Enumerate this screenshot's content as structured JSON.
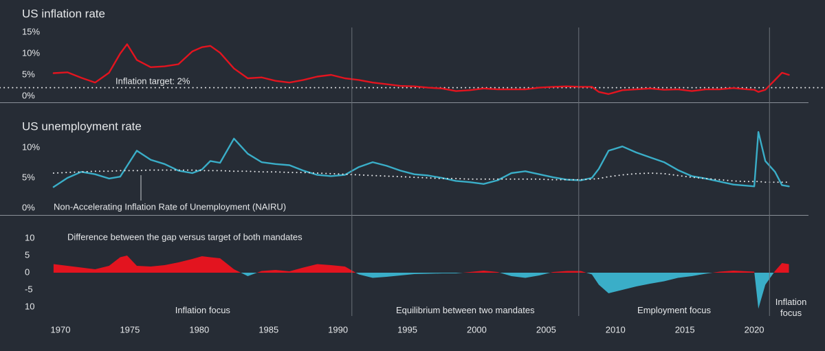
{
  "chart_data": [
    {
      "type": "line",
      "title": "US inflation rate",
      "annotation": "Inflation target: 2%",
      "target": 2,
      "xlim": [
        1965.64,
        2025.1
      ],
      "ylim": [
        -1.5,
        16.5
      ],
      "yticks": [
        {
          "value": 15,
          "label": "15%"
        },
        {
          "value": 10,
          "label": "10%"
        },
        {
          "value": 5,
          "label": "5%"
        },
        {
          "value": 0,
          "label": "0%"
        }
      ],
      "x": [
        1969.5,
        1970.5,
        1971.5,
        1972.5,
        1973.5,
        1974.3,
        1974.8,
        1975.5,
        1976.5,
        1977.5,
        1978.5,
        1979.5,
        1980.2,
        1980.8,
        1981.5,
        1982.5,
        1983.5,
        1984.5,
        1985.5,
        1986.5,
        1987.5,
        1988.5,
        1989.5,
        1990.5,
        1991.5,
        1992.5,
        1993.5,
        1994.5,
        1995.5,
        1996.5,
        1997.5,
        1998.5,
        1999.5,
        2000.5,
        2001.5,
        2002.5,
        2003.5,
        2004.5,
        2005.5,
        2006.5,
        2007.5,
        2008.3,
        2008.8,
        2009.5,
        2010.5,
        2011.5,
        2012.5,
        2013.5,
        2014.5,
        2015.5,
        2016.5,
        2017.5,
        2018.5,
        2019.5,
        2020.0,
        2020.3,
        2020.8,
        2021.5,
        2022.0,
        2022.5
      ],
      "series": [
        {
          "color": "#e3141f",
          "values": [
            5.4,
            5.6,
            4.3,
            3.2,
            5.5,
            10,
            12.2,
            8.5,
            6.8,
            7.0,
            7.5,
            10.5,
            11.5,
            11.8,
            10.2,
            6.5,
            4.2,
            4.4,
            3.6,
            3.2,
            3.8,
            4.6,
            5.0,
            4.2,
            3.8,
            3.2,
            2.8,
            2.4,
            2.3,
            2.0,
            1.8,
            1.2,
            1.4,
            1.8,
            1.6,
            1.6,
            1.6,
            2.0,
            2.2,
            2.3,
            2.2,
            2.2,
            1.0,
            0.5,
            1.4,
            1.6,
            1.8,
            1.5,
            1.6,
            1.2,
            1.6,
            1.6,
            1.9,
            1.6,
            1.5,
            1.0,
            1.5,
            3.8,
            5.5,
            5.0
          ]
        }
      ]
    },
    {
      "type": "line",
      "title": "US unemployment rate",
      "xlim": [
        1965.64,
        2025.1
      ],
      "ylim": [
        -1.2,
        13.5
      ],
      "yticks": [
        {
          "value": 10,
          "label": "10%"
        },
        {
          "value": 5,
          "label": "5%"
        },
        {
          "value": 0,
          "label": "0%"
        }
      ],
      "x": [
        1969.5,
        1970.5,
        1971.5,
        1972.5,
        1973.5,
        1974.3,
        1974.8,
        1975.5,
        1976.5,
        1977.5,
        1978.5,
        1979.5,
        1980.2,
        1980.8,
        1981.5,
        1982.5,
        1983.5,
        1984.5,
        1985.5,
        1986.5,
        1987.5,
        1988.5,
        1989.5,
        1990.5,
        1991.5,
        1992.5,
        1993.5,
        1994.5,
        1995.5,
        1996.5,
        1997.5,
        1998.5,
        1999.5,
        2000.5,
        2001.5,
        2002.5,
        2003.5,
        2004.5,
        2005.5,
        2006.5,
        2007.5,
        2008.3,
        2008.8,
        2009.5,
        2010.5,
        2011.5,
        2012.5,
        2013.5,
        2014.5,
        2015.5,
        2016.5,
        2017.5,
        2018.5,
        2019.5,
        2020.0,
        2020.3,
        2020.8,
        2021.5,
        2022.0,
        2022.5
      ],
      "series": [
        {
          "color": "#3aaec8",
          "values": [
            3.5,
            5.0,
            6.0,
            5.6,
            4.9,
            5.2,
            7.0,
            9.5,
            8.0,
            7.3,
            6.2,
            5.8,
            6.4,
            7.8,
            7.5,
            11.5,
            9.0,
            7.6,
            7.3,
            7.1,
            6.2,
            5.5,
            5.3,
            5.5,
            6.8,
            7.6,
            7.0,
            6.2,
            5.6,
            5.4,
            5.0,
            4.5,
            4.3,
            4.0,
            4.6,
            5.8,
            6.1,
            5.6,
            5.1,
            4.7,
            4.6,
            5.0,
            6.5,
            9.5,
            10.2,
            9.2,
            8.4,
            7.6,
            6.3,
            5.3,
            4.9,
            4.4,
            3.9,
            3.7,
            3.6,
            12.6,
            7.8,
            6.0,
            3.8,
            3.6
          ]
        },
        {
          "name": "Non-Accelerating Inflation Rate of Unemployment (NAIRU)",
          "color": "#e6e8ea",
          "dotted": true,
          "values": [
            5.8,
            5.9,
            6.0,
            6.1,
            6.1,
            6.2,
            6.2,
            6.2,
            6.3,
            6.3,
            6.3,
            6.3,
            6.2,
            6.2,
            6.2,
            6.1,
            6.1,
            6.0,
            6.0,
            5.9,
            5.9,
            5.8,
            5.7,
            5.6,
            5.5,
            5.4,
            5.3,
            5.2,
            5.1,
            5.0,
            4.9,
            4.9,
            4.8,
            4.8,
            4.8,
            4.8,
            4.8,
            4.8,
            4.7,
            4.7,
            4.7,
            4.8,
            4.9,
            5.2,
            5.5,
            5.7,
            5.8,
            5.7,
            5.4,
            5.1,
            4.9,
            4.7,
            4.5,
            4.4,
            4.4,
            4.4,
            4.3,
            4.3,
            4.3,
            4.3
          ]
        }
      ]
    },
    {
      "type": "area",
      "annotation": "Difference between the gap versus target of both mandates",
      "xlim": [
        1965.64,
        2025.1
      ],
      "ylim": [
        -13,
        16
      ],
      "yticks": [
        10,
        5,
        0,
        -5,
        {
          "value": -10,
          "label": "10"
        }
      ],
      "xticks": [
        1970,
        1975,
        1980,
        1985,
        1990,
        1995,
        2000,
        2005,
        2010,
        2015,
        2020
      ],
      "x": [
        1969.5,
        1970.5,
        1971.5,
        1972.5,
        1973.5,
        1974.3,
        1974.8,
        1975.5,
        1976.5,
        1977.5,
        1978.5,
        1979.5,
        1980.2,
        1980.8,
        1981.5,
        1982.5,
        1983.5,
        1984.5,
        1985.5,
        1986.5,
        1987.5,
        1988.5,
        1989.5,
        1990.5,
        1991.5,
        1992.5,
        1993.5,
        1994.5,
        1995.5,
        1996.5,
        1997.5,
        1998.5,
        1999.5,
        2000.5,
        2001.5,
        2002.5,
        2003.5,
        2004.5,
        2005.5,
        2006.5,
        2007.5,
        2008.3,
        2008.8,
        2009.5,
        2010.5,
        2011.5,
        2012.5,
        2013.5,
        2014.5,
        2015.5,
        2016.5,
        2017.5,
        2018.5,
        2019.5,
        2020.0,
        2020.3,
        2020.8,
        2021.5,
        2022.0,
        2022.5
      ],
      "series": [
        {
          "color": "#e3141f",
          "negative_color": "#3aaec8",
          "values": [
            2.5,
            2.0,
            1.5,
            1.0,
            2.0,
            4.5,
            5.0,
            2.0,
            1.8,
            2.2,
            3.0,
            4.0,
            4.8,
            4.5,
            4.2,
            1.0,
            -1.0,
            0.5,
            0.8,
            0.4,
            1.5,
            2.5,
            2.2,
            1.8,
            -0.5,
            -1.5,
            -1.2,
            -0.8,
            -0.4,
            -0.3,
            -0.2,
            -0.2,
            0.2,
            0.6,
            0.2,
            -1.0,
            -1.5,
            -0.8,
            0.2,
            0.5,
            0.5,
            -0.5,
            -3.5,
            -6.0,
            -5.0,
            -4.0,
            -3.2,
            -2.5,
            -1.5,
            -1.0,
            -0.3,
            0.3,
            0.6,
            0.4,
            0.3,
            -10.5,
            -3.5,
            0.5,
            2.8,
            2.5
          ]
        }
      ],
      "regions": [
        {
          "label": "Inflation focus",
          "start": 1969.5,
          "end": 1991
        },
        {
          "label": "Equilibrium between two mandates",
          "start": 1991,
          "end": 2007.35
        },
        {
          "label": "Employment focus",
          "start": 2007.35,
          "end": 2021.1
        },
        {
          "label": "Inflation focus",
          "start": 2021.1,
          "end": 2024.2
        }
      ]
    }
  ]
}
